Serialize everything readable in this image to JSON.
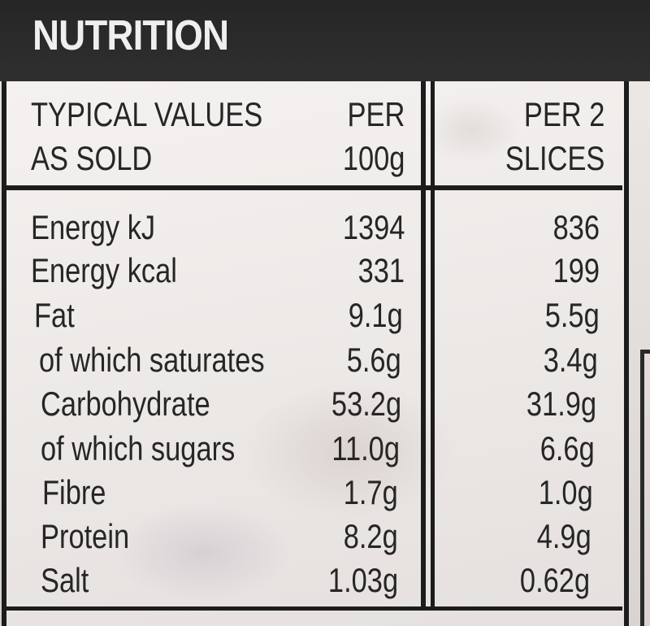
{
  "heading": "NUTRITION",
  "columns": {
    "label_line1": "TYPICAL VALUES",
    "label_line2": "AS SOLD",
    "per100_line1": "PER",
    "per100_line2": "100g",
    "per2_line1": "PER 2",
    "per2_line2": "SLICES"
  },
  "rows": [
    {
      "label": "Energy kJ",
      "per_100g": "1394",
      "per_2_slices": "836"
    },
    {
      "label": "Energy kcal",
      "per_100g": "331",
      "per_2_slices": "199"
    },
    {
      "label": "Fat",
      "per_100g": "9.1g",
      "per_2_slices": "5.5g"
    },
    {
      "label": "of which saturates",
      "per_100g": "5.6g",
      "per_2_slices": "3.4g"
    },
    {
      "label": "Carbohydrate",
      "per_100g": "53.2g",
      "per_2_slices": "31.9g"
    },
    {
      "label": "of which sugars",
      "per_100g": "11.0g",
      "per_2_slices": "6.6g"
    },
    {
      "label": "Fibre",
      "per_100g": "1.7g",
      "per_2_slices": "1.0g"
    },
    {
      "label": "Protein",
      "per_100g": "8.2g",
      "per_2_slices": "4.9g"
    },
    {
      "label": "Salt",
      "per_100g": "1.03g",
      "per_2_slices": "0.62g"
    }
  ]
}
